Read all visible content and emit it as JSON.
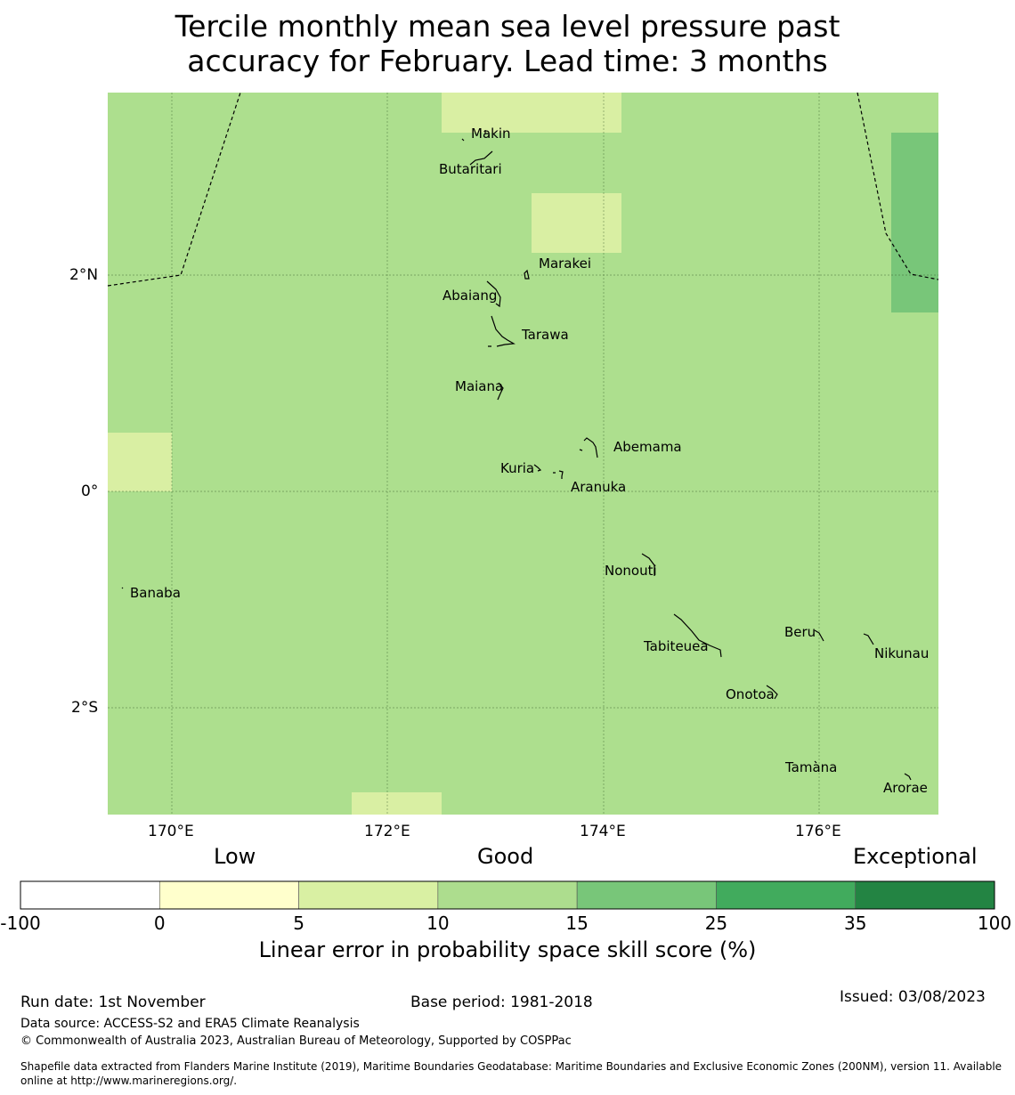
{
  "title": {
    "line1": "Tercile monthly mean sea level pressure past",
    "line2": "accuracy for February. Lead time: 3 months"
  },
  "map": {
    "background_color": "#addf8e",
    "latitude_labels": [
      "2°N",
      "0°",
      "2°S"
    ],
    "longitude_labels": [
      "170°E",
      "172°E",
      "174°E",
      "176°E"
    ],
    "place_labels": [
      "Makin",
      "Butaritari",
      "Marakei",
      "Abaiang",
      "Tarawa",
      "Maiana",
      "Abemama",
      "Kuria",
      "Aranuka",
      "Nonouti",
      "Banaba",
      "Beru",
      "Tabiteuea",
      "Nikunau",
      "Onotoa",
      "Tamana",
      "Arorae"
    ]
  },
  "legend": {
    "categories": [
      "Low",
      "Good",
      "Exceptional"
    ],
    "ticks": [
      "-100",
      "0",
      "5",
      "10",
      "15",
      "25",
      "35",
      "100"
    ],
    "colors": [
      "#ffffff",
      "#ffffcc",
      "#d9f0a3",
      "#addd8e",
      "#78c679",
      "#41ab5d",
      "#238443"
    ],
    "label": "Linear error in probability space skill score (%)"
  },
  "footer": {
    "run_date": "Run date: 1st November",
    "base_period": "Base period: 1981-2018",
    "issued": "Issued: 03/08/2023",
    "data_source": "Data source: ACCESS-S2 and ERA5 Climate Reanalysis",
    "copyright": "© Commonwealth of Australia 2023, Australian Bureau of Meteorology, Supported by COSPPac",
    "shapefile_line1": "Shapefile data extracted from Flanders Marine Institute (2019), Maritime Boundaries Geodatabase: Maritime Boundaries and Exclusive Economic Zones (200NM), version 11. Available",
    "shapefile_line2": "online at http://www.marineregions.org/."
  }
}
